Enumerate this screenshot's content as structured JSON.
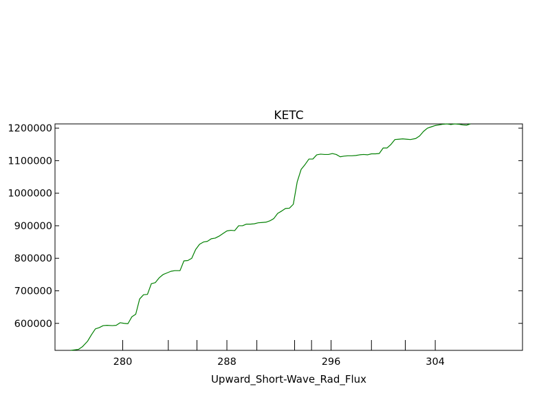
{
  "chart_data": {
    "type": "line",
    "title": "KETC",
    "xlabel": "Upward_Short-Wave_Rad_Flux",
    "ylabel": "",
    "xlim": [
      274.8,
      310.7
    ],
    "ylim": [
      517000,
      1213000
    ],
    "x_ticks": [
      {
        "value": 280,
        "label": "280"
      },
      {
        "value": 283.5,
        "label": ""
      },
      {
        "value": 285.7,
        "label": ""
      },
      {
        "value": 288,
        "label": "288"
      },
      {
        "value": 290.3,
        "label": ""
      },
      {
        "value": 293.2,
        "label": ""
      },
      {
        "value": 294.5,
        "label": ""
      },
      {
        "value": 296,
        "label": "296"
      },
      {
        "value": 299.1,
        "label": ""
      },
      {
        "value": 301.7,
        "label": ""
      },
      {
        "value": 304,
        "label": "304"
      }
    ],
    "y_ticks": [
      {
        "value": 600000,
        "label": "600000"
      },
      {
        "value": 700000,
        "label": "700000"
      },
      {
        "value": 800000,
        "label": "800000"
      },
      {
        "value": 900000,
        "label": "900000"
      },
      {
        "value": 1000000,
        "label": "1000000"
      },
      {
        "value": 1100000,
        "label": "1100000"
      },
      {
        "value": 1200000,
        "label": "1200000"
      }
    ],
    "grid": false,
    "series": [
      {
        "color": "#007f00",
        "points": [
          [
            276.0,
            517000
          ],
          [
            276.6,
            520000
          ],
          [
            276.9,
            528000
          ],
          [
            277.3,
            545000
          ],
          [
            277.6,
            565000
          ],
          [
            277.9,
            583000
          ],
          [
            278.2,
            587000
          ],
          [
            278.5,
            593000
          ],
          [
            278.8,
            594000
          ],
          [
            279.2,
            593000
          ],
          [
            279.5,
            594000
          ],
          [
            279.8,
            602000
          ],
          [
            280.1,
            600000
          ],
          [
            280.4,
            599000
          ],
          [
            280.7,
            620000
          ],
          [
            281.0,
            628000
          ],
          [
            281.3,
            675000
          ],
          [
            281.6,
            688000
          ],
          [
            281.9,
            689000
          ],
          [
            282.2,
            722000
          ],
          [
            282.5,
            725000
          ],
          [
            282.8,
            740000
          ],
          [
            283.1,
            750000
          ],
          [
            283.4,
            755000
          ],
          [
            283.7,
            760000
          ],
          [
            284.0,
            762000
          ],
          [
            284.4,
            762000
          ],
          [
            284.7,
            792000
          ],
          [
            285.0,
            793000
          ],
          [
            285.3,
            800000
          ],
          [
            285.6,
            827000
          ],
          [
            285.9,
            843000
          ],
          [
            286.2,
            850000
          ],
          [
            286.5,
            852000
          ],
          [
            286.8,
            860000
          ],
          [
            287.1,
            862000
          ],
          [
            287.4,
            868000
          ],
          [
            287.7,
            876000
          ],
          [
            288.0,
            884000
          ],
          [
            288.3,
            886000
          ],
          [
            288.6,
            885000
          ],
          [
            288.9,
            900000
          ],
          [
            289.2,
            900000
          ],
          [
            289.5,
            905000
          ],
          [
            289.8,
            905000
          ],
          [
            290.1,
            906000
          ],
          [
            290.4,
            909000
          ],
          [
            290.7,
            910000
          ],
          [
            291.0,
            911000
          ],
          [
            291.3,
            915000
          ],
          [
            291.6,
            922000
          ],
          [
            291.9,
            938000
          ],
          [
            292.2,
            945000
          ],
          [
            292.5,
            953000
          ],
          [
            292.8,
            954000
          ],
          [
            293.1,
            966000
          ],
          [
            293.4,
            1035000
          ],
          [
            293.7,
            1073000
          ],
          [
            294.0,
            1088000
          ],
          [
            294.3,
            1105000
          ],
          [
            294.6,
            1105000
          ],
          [
            294.9,
            1118000
          ],
          [
            295.2,
            1120000
          ],
          [
            295.5,
            1119000
          ],
          [
            295.8,
            1119000
          ],
          [
            296.1,
            1122000
          ],
          [
            296.4,
            1119000
          ],
          [
            296.7,
            1112000
          ],
          [
            297.0,
            1114000
          ],
          [
            297.3,
            1115000
          ],
          [
            297.6,
            1115000
          ],
          [
            297.9,
            1116000
          ],
          [
            298.2,
            1118000
          ],
          [
            298.5,
            1119000
          ],
          [
            298.8,
            1118000
          ],
          [
            299.1,
            1121000
          ],
          [
            299.4,
            1121000
          ],
          [
            299.7,
            1122000
          ],
          [
            300.0,
            1139000
          ],
          [
            300.3,
            1139000
          ],
          [
            300.6,
            1150000
          ],
          [
            300.9,
            1165000
          ],
          [
            301.2,
            1166000
          ],
          [
            301.5,
            1167000
          ],
          [
            301.8,
            1166000
          ],
          [
            302.1,
            1165000
          ],
          [
            302.5,
            1168000
          ],
          [
            302.8,
            1176000
          ],
          [
            303.1,
            1190000
          ],
          [
            303.4,
            1200000
          ],
          [
            303.7,
            1204000
          ],
          [
            304.0,
            1208000
          ],
          [
            304.3,
            1210000
          ],
          [
            304.6,
            1212000
          ],
          [
            304.9,
            1213000
          ],
          [
            305.2,
            1211000
          ],
          [
            305.5,
            1213000
          ],
          [
            305.8,
            1212000
          ],
          [
            306.1,
            1210000
          ],
          [
            306.4,
            1209000
          ],
          [
            306.7,
            1213000
          ]
        ]
      }
    ]
  }
}
